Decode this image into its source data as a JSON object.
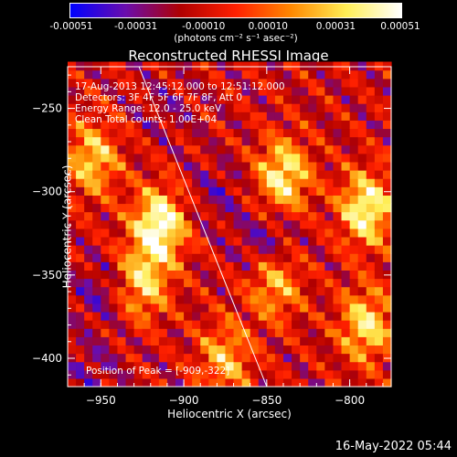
{
  "colorbar": {
    "ticks": [
      "-0.00051",
      "-0.00031",
      "-0.00010",
      "0.00010",
      "0.00031",
      "0.00051"
    ],
    "tick_values": [
      -0.00051,
      -0.00031,
      -0.0001,
      0.0001,
      0.00031,
      0.00051
    ],
    "range": [
      -0.00051,
      0.00051
    ],
    "unit": "(photons cm⁻² s⁻¹ asec⁻²)",
    "colors": [
      "#0000ff",
      "#6a0dad",
      "#b00000",
      "#ff2000",
      "#ff8800",
      "#ffee55",
      "#ffffff"
    ]
  },
  "chart_data": {
    "type": "heatmap",
    "title": "Reconstructed RHESSI Image",
    "xlabel": "Heliocentric X (arcsec)",
    "ylabel": "Heliocentric Y (arcsec)",
    "xlim": [
      -970,
      -775
    ],
    "ylim": [
      -417,
      -225
    ],
    "x_ticks": [
      -950,
      -900,
      -850,
      -800
    ],
    "y_ticks": [
      -250,
      -300,
      -350,
      -400
    ],
    "annotations": [
      "17-Aug-2013 12:45:12.000 to 12:51:12.000",
      "Detectors: 3F 4F 5F 6F 7F 8F, Att 0",
      "Energy Range: 12.0 - 25.0 keV",
      "Clean     Total counts: 1.00E+04"
    ],
    "peak_label": "Position of Peak = [-909,-322]",
    "peak": [
      -909,
      -322
    ],
    "limb_line": [
      [
        -927,
        -225
      ],
      [
        -850,
        -417
      ]
    ],
    "bright_regions": [
      {
        "x": -955,
        "y": -280,
        "value": 0.00031
      },
      {
        "x": -915,
        "y": -320,
        "value": 0.00051
      },
      {
        "x": -925,
        "y": -355,
        "value": 0.00031
      },
      {
        "x": -840,
        "y": -290,
        "value": 0.0004
      },
      {
        "x": -790,
        "y": -310,
        "value": 0.00045
      },
      {
        "x": -790,
        "y": -380,
        "value": 0.00035
      },
      {
        "x": -875,
        "y": -400,
        "value": 0.00025
      },
      {
        "x": -845,
        "y": -355,
        "value": 0.00025
      }
    ],
    "dim_regions": [
      {
        "x": -880,
        "y": -300,
        "value": -0.0003
      },
      {
        "x": -950,
        "y": -360,
        "value": -0.00035
      },
      {
        "x": -850,
        "y": -330,
        "value": -0.0004
      },
      {
        "x": -910,
        "y": -250,
        "value": -0.00025
      },
      {
        "x": -955,
        "y": -405,
        "value": -0.0003
      }
    ],
    "background_value": -0.00012
  },
  "timestamp": "16-May-2022 05:44"
}
